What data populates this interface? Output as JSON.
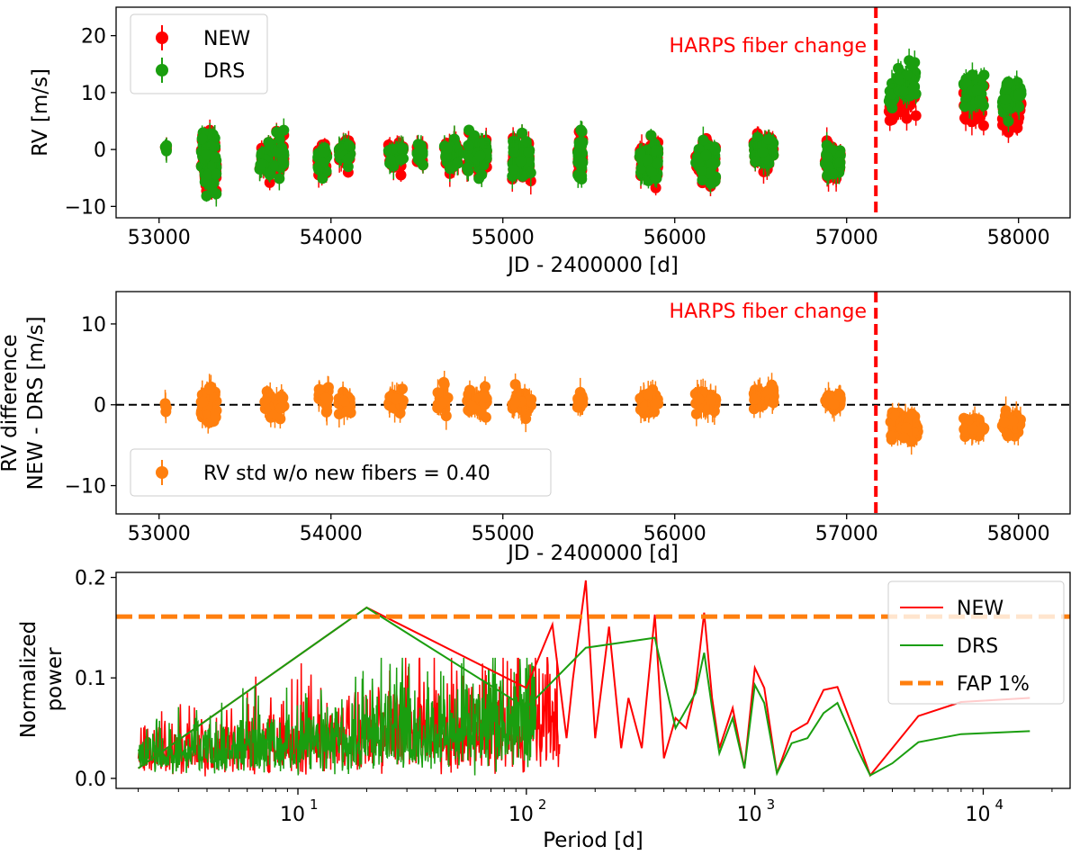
{
  "chart_data": [
    {
      "type": "scatter",
      "title": "",
      "xlabel": "JD - 2400000 [d]",
      "ylabel": "RV [m/s]",
      "xlim": [
        52750,
        58300
      ],
      "ylim": [
        -12,
        25
      ],
      "xticks": [
        53000,
        54000,
        55000,
        56000,
        57000,
        58000
      ],
      "xtick_labels": [
        "53000",
        "54000",
        "55000",
        "56000",
        "57000",
        "58000"
      ],
      "yticks": [
        -10,
        0,
        10,
        20
      ],
      "ytick_labels": [
        "−10",
        "0",
        "10",
        "20"
      ],
      "annotation": "HARPS fiber change",
      "vline": {
        "x": 57170,
        "color": "#ff0000",
        "style": "dashed"
      },
      "legend": {
        "placement": "top-left",
        "entries": [
          {
            "label": "NEW",
            "color": "#ff0000"
          },
          {
            "label": "DRS",
            "color": "#1a9e0f"
          }
        ]
      },
      "clusters": [
        {
          "x": 53040,
          "w": 10,
          "c": 0.5,
          "s": 0.6,
          "n": 4
        },
        {
          "x": 53290,
          "w": 90,
          "c": -2.0,
          "s": 3.2,
          "n": 70
        },
        {
          "x": 53620,
          "w": 70,
          "c": -1.5,
          "s": 1.6,
          "n": 25
        },
        {
          "x": 53700,
          "w": 60,
          "c": -1.2,
          "s": 2.0,
          "n": 20
        },
        {
          "x": 53950,
          "w": 60,
          "c": -2.0,
          "s": 1.5,
          "n": 25
        },
        {
          "x": 54080,
          "w": 70,
          "c": -0.5,
          "s": 1.3,
          "n": 25
        },
        {
          "x": 54380,
          "w": 90,
          "c": -1.0,
          "s": 1.0,
          "n": 30
        },
        {
          "x": 54520,
          "w": 40,
          "c": -1.0,
          "s": 1.0,
          "n": 15
        },
        {
          "x": 54700,
          "w": 80,
          "c": -1.0,
          "s": 1.6,
          "n": 40
        },
        {
          "x": 54850,
          "w": 120,
          "c": -1.0,
          "s": 1.8,
          "n": 50
        },
        {
          "x": 55110,
          "w": 110,
          "c": -1.5,
          "s": 2.2,
          "n": 55
        },
        {
          "x": 55450,
          "w": 30,
          "c": -1.0,
          "s": 2.5,
          "n": 30
        },
        {
          "x": 55850,
          "w": 110,
          "c": -2.0,
          "s": 2.2,
          "n": 50
        },
        {
          "x": 56180,
          "w": 120,
          "c": -2.0,
          "s": 2.2,
          "n": 55
        },
        {
          "x": 56520,
          "w": 120,
          "c": -0.5,
          "s": 1.8,
          "n": 50
        },
        {
          "x": 56920,
          "w": 90,
          "c": -2.0,
          "s": 1.6,
          "n": 35
        },
        {
          "x": 57260,
          "w": 40,
          "c": 9.5,
          "s": 1.8,
          "n": 12
        },
        {
          "x": 57350,
          "w": 110,
          "c": 12.0,
          "s": 2.0,
          "n": 45
        },
        {
          "x": 57740,
          "w": 120,
          "c": 10.0,
          "s": 1.8,
          "n": 45
        },
        {
          "x": 57960,
          "w": 110,
          "c": 9.5,
          "s": 1.8,
          "n": 45
        }
      ]
    },
    {
      "type": "scatter",
      "title": "",
      "xlabel": "JD - 2400000 [d]",
      "ylabel": "RV difference NEW - DRS [m/s]",
      "ylabel_lines": [
        "RV difference",
        "NEW - DRS [m/s]"
      ],
      "xlim": [
        52750,
        58300
      ],
      "ylim": [
        -13.5,
        14
      ],
      "xticks": [
        53000,
        54000,
        55000,
        56000,
        57000,
        58000
      ],
      "xtick_labels": [
        "53000",
        "54000",
        "55000",
        "56000",
        "57000",
        "58000"
      ],
      "yticks": [
        -10,
        0,
        10
      ],
      "ytick_labels": [
        "−10",
        "0",
        "10"
      ],
      "annotation": "HARPS fiber change",
      "hline": {
        "y": 0,
        "color": "#000000",
        "style": "dashed"
      },
      "vline": {
        "x": 57170,
        "color": "#ff0000",
        "style": "dashed"
      },
      "legend": {
        "placement": "bottom-left",
        "entries": [
          {
            "label": "RV std w/o new fibers = 0.40",
            "color": "#ff7f0e"
          }
        ]
      },
      "clusters": [
        {
          "x": 53040,
          "w": 10,
          "c": 0.0,
          "s": 0.3,
          "n": 4
        },
        {
          "x": 53290,
          "w": 90,
          "c": 0.0,
          "s": 1.0,
          "n": 60
        },
        {
          "x": 53640,
          "w": 70,
          "c": 0.2,
          "s": 0.6,
          "n": 20
        },
        {
          "x": 53700,
          "w": 60,
          "c": 0.0,
          "s": 0.8,
          "n": 20
        },
        {
          "x": 53960,
          "w": 60,
          "c": 1.0,
          "s": 0.8,
          "n": 25
        },
        {
          "x": 54080,
          "w": 70,
          "c": 0.0,
          "s": 0.7,
          "n": 25
        },
        {
          "x": 54380,
          "w": 90,
          "c": 0.4,
          "s": 0.6,
          "n": 30
        },
        {
          "x": 54650,
          "w": 60,
          "c": 0.6,
          "s": 0.8,
          "n": 25
        },
        {
          "x": 54850,
          "w": 120,
          "c": 0.2,
          "s": 0.7,
          "n": 50
        },
        {
          "x": 55110,
          "w": 110,
          "c": 0.2,
          "s": 0.9,
          "n": 50
        },
        {
          "x": 55450,
          "w": 30,
          "c": 0.3,
          "s": 0.5,
          "n": 20
        },
        {
          "x": 55850,
          "w": 110,
          "c": 0.3,
          "s": 0.6,
          "n": 45
        },
        {
          "x": 56180,
          "w": 120,
          "c": 0.5,
          "s": 0.7,
          "n": 50
        },
        {
          "x": 56520,
          "w": 120,
          "c": 1.0,
          "s": 0.7,
          "n": 45
        },
        {
          "x": 56920,
          "w": 90,
          "c": 0.3,
          "s": 0.5,
          "n": 35
        },
        {
          "x": 57280,
          "w": 50,
          "c": -3.0,
          "s": 1.0,
          "n": 20
        },
        {
          "x": 57360,
          "w": 110,
          "c": -2.8,
          "s": 0.8,
          "n": 40
        },
        {
          "x": 57740,
          "w": 120,
          "c": -2.8,
          "s": 0.6,
          "n": 40
        },
        {
          "x": 57960,
          "w": 110,
          "c": -2.2,
          "s": 0.7,
          "n": 40
        }
      ]
    },
    {
      "type": "line",
      "title": "",
      "xlabel": "Period [d]",
      "ylabel": "Normalized power",
      "ylabel_lines": [
        "Normalized",
        "power"
      ],
      "xscale": "log",
      "xlim": [
        1.6,
        24000
      ],
      "ylim": [
        -0.01,
        0.205
      ],
      "xticks": [
        10,
        100,
        1000,
        10000
      ],
      "xtick_labels": [
        [
          "10",
          "1"
        ],
        [
          "10",
          "2"
        ],
        [
          "10",
          "3"
        ],
        [
          "10",
          "4"
        ]
      ],
      "yticks": [
        0.0,
        0.1,
        0.2
      ],
      "ytick_labels": [
        "0.0",
        "0.1",
        "0.2"
      ],
      "hline": {
        "y": 0.161,
        "label": "FAP 1%",
        "color": "#ff7f0e",
        "style": "dashed"
      },
      "legend": {
        "placement": "top-right",
        "entries": [
          {
            "label": "NEW",
            "color": "#ff0000"
          },
          {
            "label": "DRS",
            "color": "#1a9e0f"
          },
          {
            "label": "FAP 1%",
            "color": "#ff7f0e"
          }
        ]
      },
      "series": [
        {
          "name": "NEW",
          "color": "#ff0000",
          "x": [
            2.0,
            20,
            100,
            130,
            150,
            160,
            182,
            200,
            230,
            260,
            280,
            320,
            365,
            400,
            450,
            500,
            550,
            600,
            650,
            700,
            800,
            900,
            1000,
            1100,
            1250,
            1450,
            1700,
            2000,
            2300,
            2800,
            3200,
            4000,
            5200,
            8000,
            16000
          ],
          "y": [
            0.01,
            0.17,
            0.09,
            0.153,
            0.04,
            0.1,
            0.197,
            0.04,
            0.151,
            0.03,
            0.08,
            0.03,
            0.163,
            0.02,
            0.06,
            0.05,
            0.09,
            0.165,
            0.08,
            0.03,
            0.07,
            0.01,
            0.11,
            0.09,
            0.005,
            0.046,
            0.055,
            0.088,
            0.091,
            0.04,
            0.003,
            0.03,
            0.062,
            0.076,
            0.08
          ]
        },
        {
          "name": "DRS",
          "color": "#1a9e0f",
          "x": [
            2.0,
            20,
            100,
            182,
            365,
            450,
            550,
            600,
            650,
            700,
            800,
            900,
            1000,
            1100,
            1250,
            1450,
            1700,
            2000,
            2300,
            2800,
            3200,
            4000,
            5200,
            8000,
            16000
          ],
          "y": [
            0.01,
            0.17,
            0.07,
            0.13,
            0.14,
            0.05,
            0.085,
            0.125,
            0.07,
            0.025,
            0.06,
            0.01,
            0.093,
            0.075,
            0.005,
            0.035,
            0.04,
            0.065,
            0.075,
            0.03,
            0.003,
            0.015,
            0.036,
            0.044,
            0.047
          ]
        }
      ]
    }
  ]
}
